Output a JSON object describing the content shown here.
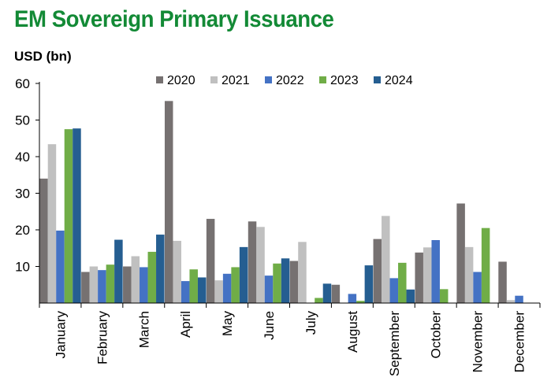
{
  "title": "EM Sovereign Primary Issuance",
  "unit_label": "USD (bn)",
  "chart_data": {
    "type": "bar",
    "categories": [
      "January",
      "February",
      "March",
      "April",
      "May",
      "June",
      "July",
      "August",
      "September",
      "October",
      "November",
      "December"
    ],
    "series": [
      {
        "name": "2020",
        "color": "#767171",
        "values": [
          34,
          8.5,
          10,
          55.2,
          23,
          22.3,
          11.5,
          5,
          17.5,
          13.8,
          27.2,
          11.3
        ]
      },
      {
        "name": "2021",
        "color": "#c0c0c0",
        "values": [
          43.4,
          10,
          12.8,
          17,
          6.2,
          20.8,
          16.7,
          0,
          23.8,
          15.2,
          15.3,
          0.8
        ]
      },
      {
        "name": "2022",
        "color": "#4472c4",
        "values": [
          19.8,
          9,
          9.8,
          6,
          8,
          7.5,
          0,
          2.5,
          6.8,
          17.2,
          8.5,
          2
        ]
      },
      {
        "name": "2023",
        "color": "#70ad47",
        "values": [
          47.5,
          10.5,
          14,
          9.2,
          9.8,
          10.8,
          1.4,
          0.6,
          11,
          3.8,
          20.5,
          0
        ]
      },
      {
        "name": "2024",
        "color": "#255e91",
        "values": [
          47.7,
          17.3,
          18.7,
          7,
          15.3,
          12.2,
          5.3,
          10.3,
          3.7,
          0,
          0,
          0
        ]
      }
    ],
    "ylim": [
      0,
      60
    ],
    "yticks": [
      10,
      20,
      30,
      40,
      50,
      60
    ],
    "xlabel": "",
    "ylabel": "",
    "legend_position": "top",
    "grid": false
  }
}
